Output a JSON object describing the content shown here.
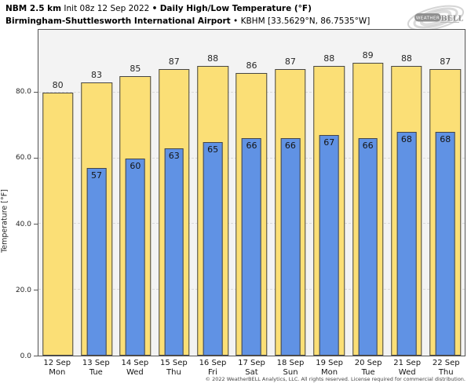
{
  "header": {
    "model": "NBM 2.5 km",
    "init": "Init 08z 12 Sep 2022",
    "separator": "•",
    "product": "Daily High/Low Temperature (°F)",
    "station_name": "Birmingham-Shuttlesworth International Airport",
    "station_meta": "KBHM [33.5629°N, 86.7535°W]"
  },
  "logo": {
    "brand": "WeatherBELL",
    "weather": "WEATHER",
    "bell": "BELL"
  },
  "colors": {
    "high_bar": "#FBDF76",
    "low_bar": "#6092E4",
    "bar_edge": "#454545",
    "plot_bg": "#F3F3F3",
    "grid": "#D9D9D9",
    "frame": "#555555"
  },
  "chart_data": {
    "type": "bar",
    "title": "Daily High/Low Temperature (°F)",
    "subtitle": "NBM 2.5 km — Birmingham-Shuttlesworth International Airport (KBHM)",
    "xlabel": "",
    "ylabel": "Temperature [°F]",
    "ylim": [
      0,
      99
    ],
    "yticks": [
      0,
      20,
      40,
      60,
      80
    ],
    "ytick_labels": [
      "0.0",
      "20.0",
      "40.0",
      "60.0",
      "80.0"
    ],
    "grid": true,
    "legend_position": "none",
    "categories": [
      {
        "date": "12 Sep",
        "day": "Mon"
      },
      {
        "date": "13 Sep",
        "day": "Tue"
      },
      {
        "date": "14 Sep",
        "day": "Wed"
      },
      {
        "date": "15 Sep",
        "day": "Thu"
      },
      {
        "date": "16 Sep",
        "day": "Fri"
      },
      {
        "date": "17 Sep",
        "day": "Sat"
      },
      {
        "date": "18 Sep",
        "day": "Sun"
      },
      {
        "date": "19 Sep",
        "day": "Mon"
      },
      {
        "date": "20 Sep",
        "day": "Tue"
      },
      {
        "date": "21 Sep",
        "day": "Wed"
      },
      {
        "date": "22 Sep",
        "day": "Thu"
      }
    ],
    "series": [
      {
        "name": "Daily High",
        "color": "#FBDF76",
        "values": [
          80,
          83,
          85,
          87,
          88,
          86,
          87,
          88,
          89,
          88,
          87
        ]
      },
      {
        "name": "Daily Low",
        "color": "#6092E4",
        "values": [
          null,
          57,
          60,
          63,
          65,
          66,
          66,
          67,
          66,
          68,
          68
        ]
      }
    ]
  },
  "footer": {
    "copyright": "© 2022 WeatherBELL Analytics, LLC. All rights reserved. License required for commercial distribution."
  }
}
